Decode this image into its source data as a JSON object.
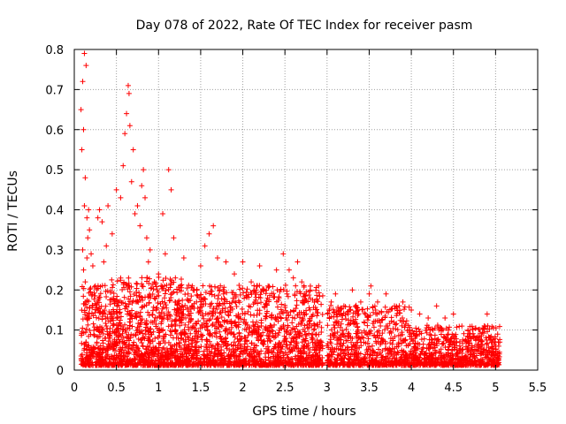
{
  "chart_data": {
    "type": "scatter",
    "title": "Day 078 of 2022, Rate Of TEC Index for receiver pasm",
    "xlabel": "GPS time / hours",
    "ylabel": "ROTI / TECUs",
    "xlim": [
      0,
      5.5
    ],
    "ylim": [
      0,
      0.8
    ],
    "xticks": [
      "0",
      "0.5",
      "1",
      "1.5",
      "2",
      "2.5",
      "3",
      "3.5",
      "4",
      "4.5",
      "5",
      "5.5"
    ],
    "yticks": [
      "0",
      "0.1",
      "0.2",
      "0.3",
      "0.4",
      "0.5",
      "0.6",
      "0.7",
      "0.8"
    ],
    "grid": true,
    "marker": "+",
    "series_color": "#ff0000",
    "series": [
      {
        "points": [
          [
            0.08,
            0.65
          ],
          [
            0.09,
            0.55
          ],
          [
            0.1,
            0.72
          ],
          [
            0.11,
            0.6
          ],
          [
            0.12,
            0.79
          ],
          [
            0.13,
            0.48
          ],
          [
            0.12,
            0.41
          ],
          [
            0.14,
            0.76
          ],
          [
            0.15,
            0.38
          ],
          [
            0.16,
            0.33
          ],
          [
            0.1,
            0.3
          ],
          [
            0.11,
            0.25
          ],
          [
            0.13,
            0.22
          ],
          [
            0.15,
            0.28
          ],
          [
            0.17,
            0.4
          ],
          [
            0.18,
            0.35
          ],
          [
            0.2,
            0.29
          ],
          [
            0.22,
            0.26
          ],
          [
            0.25,
            0.21
          ],
          [
            0.28,
            0.38
          ],
          [
            0.3,
            0.4
          ],
          [
            0.33,
            0.37
          ],
          [
            0.35,
            0.27
          ],
          [
            0.38,
            0.31
          ],
          [
            0.4,
            0.41
          ],
          [
            0.45,
            0.34
          ],
          [
            0.5,
            0.45
          ],
          [
            0.55,
            0.43
          ],
          [
            0.58,
            0.51
          ],
          [
            0.6,
            0.59
          ],
          [
            0.62,
            0.64
          ],
          [
            0.64,
            0.71
          ],
          [
            0.65,
            0.69
          ],
          [
            0.66,
            0.61
          ],
          [
            0.68,
            0.47
          ],
          [
            0.7,
            0.55
          ],
          [
            0.72,
            0.39
          ],
          [
            0.75,
            0.41
          ],
          [
            0.78,
            0.36
          ],
          [
            0.8,
            0.46
          ],
          [
            0.82,
            0.5
          ],
          [
            0.84,
            0.43
          ],
          [
            0.86,
            0.33
          ],
          [
            0.88,
            0.27
          ],
          [
            0.9,
            0.3
          ],
          [
            0.95,
            0.22
          ],
          [
            1.0,
            0.24
          ],
          [
            1.05,
            0.39
          ],
          [
            1.08,
            0.29
          ],
          [
            1.12,
            0.5
          ],
          [
            1.15,
            0.45
          ],
          [
            1.18,
            0.33
          ],
          [
            1.2,
            0.23
          ],
          [
            1.25,
            0.2
          ],
          [
            1.3,
            0.28
          ],
          [
            1.35,
            0.19
          ],
          [
            1.4,
            0.21
          ],
          [
            1.5,
            0.26
          ],
          [
            1.55,
            0.31
          ],
          [
            1.6,
            0.34
          ],
          [
            1.65,
            0.36
          ],
          [
            1.7,
            0.28
          ],
          [
            1.8,
            0.27
          ],
          [
            1.9,
            0.24
          ],
          [
            2.0,
            0.27
          ],
          [
            2.1,
            0.22
          ],
          [
            2.2,
            0.26
          ],
          [
            2.3,
            0.21
          ],
          [
            2.4,
            0.25
          ],
          [
            2.48,
            0.29
          ],
          [
            2.55,
            0.25
          ],
          [
            2.6,
            0.23
          ],
          [
            2.65,
            0.27
          ],
          [
            2.7,
            0.22
          ],
          [
            2.8,
            0.2
          ],
          [
            2.9,
            0.21
          ],
          [
            3.05,
            0.17
          ],
          [
            3.1,
            0.19
          ],
          [
            3.2,
            0.16
          ],
          [
            3.3,
            0.2
          ],
          [
            3.4,
            0.17
          ],
          [
            3.5,
            0.19
          ],
          [
            3.52,
            0.21
          ],
          [
            3.6,
            0.17
          ],
          [
            3.7,
            0.19
          ],
          [
            3.8,
            0.16
          ],
          [
            3.9,
            0.17
          ],
          [
            4.0,
            0.15
          ],
          [
            4.1,
            0.14
          ],
          [
            4.2,
            0.13
          ],
          [
            4.3,
            0.16
          ],
          [
            4.4,
            0.13
          ],
          [
            4.5,
            0.14
          ],
          [
            4.6,
            0.11
          ],
          [
            4.7,
            0.09
          ],
          [
            4.8,
            0.08
          ],
          [
            4.9,
            0.14
          ],
          [
            4.95,
            0.07
          ],
          [
            5.0,
            0.06
          ],
          [
            5.05,
            0.07
          ]
        ]
      }
    ],
    "density": {
      "segments": [
        {
          "x0": 0.08,
          "x1": 0.4,
          "count": 300,
          "max": 0.2
        },
        {
          "x0": 0.4,
          "x1": 1.3,
          "count": 900,
          "max": 0.22
        },
        {
          "x0": 1.3,
          "x1": 2.95,
          "count": 1400,
          "max": 0.2
        },
        {
          "x0": 3.0,
          "x1": 4.0,
          "count": 700,
          "max": 0.15
        },
        {
          "x0": 4.0,
          "x1": 5.05,
          "count": 700,
          "max": 0.1
        }
      ],
      "gap": [
        2.93,
        3.0
      ]
    }
  }
}
